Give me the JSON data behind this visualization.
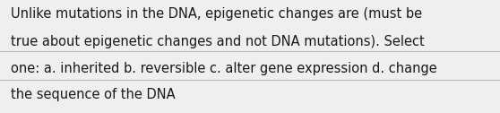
{
  "background_color": "#efefef",
  "text_color": "#1a1a1a",
  "line1": "Unlike mutations in the DNA, epigenetic changes are (must be",
  "line2": "true about epigenetic changes and not DNA mutations). Select",
  "line3": "one: a. inherited b. reversible c. alter gene expression d. change",
  "line4": "the sequence of the DNA",
  "font_size": 10.5,
  "font_family": "DejaVu Sans",
  "line_color": "#bbbbbb",
  "line_width": 0.8,
  "fig_width": 5.58,
  "fig_height": 1.26,
  "dpi": 100
}
